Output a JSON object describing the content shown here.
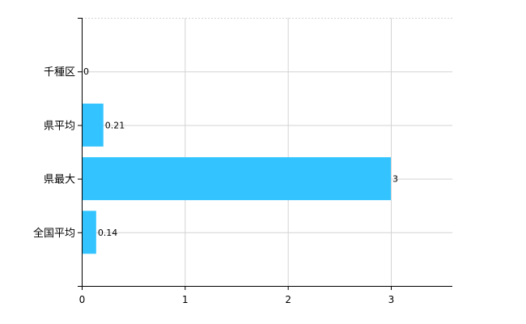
{
  "chart_data": {
    "type": "bar",
    "orientation": "horizontal",
    "categories": [
      "千種区",
      "県平均",
      "県最大",
      "全国平均"
    ],
    "values": [
      0,
      0.21,
      3,
      0.14
    ],
    "data_labels": [
      "0",
      "0.21",
      "3",
      "0.14"
    ],
    "xlim": [
      0,
      3.6
    ],
    "xticks": [
      "0",
      "1",
      "2",
      "3"
    ],
    "grid": true,
    "bar_color": "#33c4ff",
    "grid_color": "#d3d3d3"
  }
}
